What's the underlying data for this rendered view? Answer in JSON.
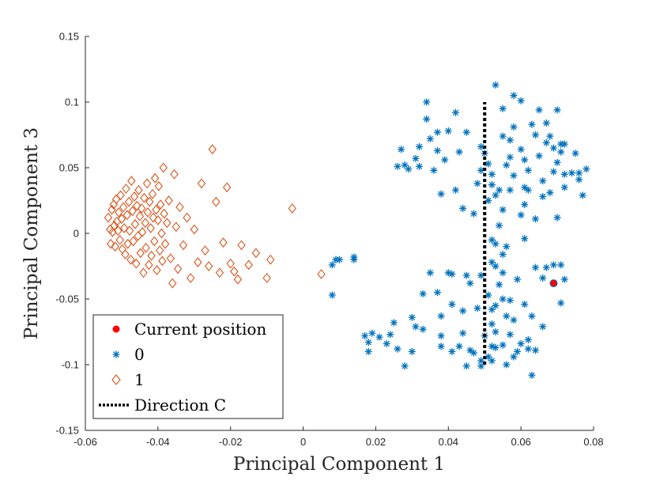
{
  "chart_data": {
    "type": "scatter",
    "xlabel": "Principal Component 1",
    "ylabel": "Principal Component 3",
    "xlim": [
      -0.06,
      0.08
    ],
    "ylim": [
      -0.15,
      0.15
    ],
    "xticks": [
      -0.06,
      -0.04,
      -0.02,
      0,
      0.02,
      0.04,
      0.06,
      0.08
    ],
    "xtick_labels": [
      "-0.06",
      "-0.04",
      "-0.02",
      "0",
      "0.02",
      "0.04",
      "0.06",
      "0.08"
    ],
    "yticks": [
      -0.15,
      -0.1,
      -0.05,
      0,
      0.05,
      0.1,
      0.15
    ],
    "ytick_labels": [
      "-0.15",
      "-0.1",
      "-0.05",
      "0",
      "0.05",
      "0.1",
      "0.15"
    ],
    "grid": false,
    "legend_position": "bottom-left",
    "legend": [
      "Current position",
      "0",
      "1",
      "Direction C"
    ],
    "series": [
      {
        "name": "0",
        "marker": "asterisk",
        "color": "#0072BD",
        "points": [
          [
            0.008,
            -0.024
          ],
          [
            0.009,
            -0.02
          ],
          [
            0.01,
            -0.02
          ],
          [
            0.008,
            -0.047
          ],
          [
            0.014,
            -0.018
          ],
          [
            0.014,
            -0.02
          ],
          [
            0.017,
            -0.078
          ],
          [
            0.018,
            -0.083
          ],
          [
            0.018,
            -0.09
          ],
          [
            0.019,
            -0.076
          ],
          [
            0.021,
            -0.079
          ],
          [
            0.023,
            -0.084
          ],
          [
            0.024,
            -0.077
          ],
          [
            0.025,
            -0.068
          ],
          [
            0.026,
            -0.088
          ],
          [
            0.026,
            0.051
          ],
          [
            0.027,
            0.064
          ],
          [
            0.028,
            0.052
          ],
          [
            0.028,
            -0.101
          ],
          [
            0.029,
            0.049
          ],
          [
            0.03,
            -0.064
          ],
          [
            0.03,
            -0.09
          ],
          [
            0.031,
            -0.071
          ],
          [
            0.031,
            0.057
          ],
          [
            0.032,
            0.066
          ],
          [
            0.032,
            0.051
          ],
          [
            0.033,
            -0.046
          ],
          [
            0.033,
            -0.073
          ],
          [
            0.034,
            0.087
          ],
          [
            0.034,
            0.1
          ],
          [
            0.035,
            0.072
          ],
          [
            0.035,
            -0.03
          ],
          [
            0.036,
            0.048
          ],
          [
            0.037,
            0.063
          ],
          [
            0.037,
            0.077
          ],
          [
            0.037,
            -0.045
          ],
          [
            0.038,
            0.03
          ],
          [
            0.038,
            -0.063
          ],
          [
            0.038,
            -0.078
          ],
          [
            0.038,
            -0.086
          ],
          [
            0.039,
            0.056
          ],
          [
            0.04,
            -0.03
          ],
          [
            0.04,
            0.078
          ],
          [
            0.041,
            -0.031
          ],
          [
            0.041,
            -0.09
          ],
          [
            0.041,
            -0.054
          ],
          [
            0.042,
            0.033
          ],
          [
            0.042,
            0.092
          ],
          [
            0.043,
            0.062
          ],
          [
            0.043,
            -0.086
          ],
          [
            0.044,
            -0.076
          ],
          [
            0.044,
            0.019
          ],
          [
            0.044,
            -0.059
          ],
          [
            0.045,
            0.077
          ],
          [
            0.045,
            -0.101
          ],
          [
            0.045,
            -0.032
          ],
          [
            0.046,
            -0.089
          ],
          [
            0.046,
            -0.038
          ],
          [
            0.047,
            -0.091
          ],
          [
            0.047,
            0.015
          ],
          [
            0.048,
            -0.057
          ],
          [
            0.048,
            0.038
          ],
          [
            0.049,
            -0.097
          ],
          [
            0.049,
            0.048
          ],
          [
            0.049,
            -0.032
          ],
          [
            0.049,
            -0.101
          ],
          [
            0.049,
            0.066
          ],
          [
            0.05,
            -0.078
          ],
          [
            0.05,
            0.061
          ],
          [
            0.051,
            -0.047
          ],
          [
            0.051,
            0.053
          ],
          [
            0.051,
            0.025
          ],
          [
            0.051,
            -0.094
          ],
          [
            0.052,
            -0.097
          ],
          [
            0.052,
            -0.086
          ],
          [
            0.052,
            0.045
          ],
          [
            0.052,
            0.037
          ],
          [
            0.052,
            -0.005
          ],
          [
            0.052,
            -0.022
          ],
          [
            0.052,
            -0.058
          ],
          [
            0.052,
            -0.069
          ],
          [
            0.053,
            0.113
          ],
          [
            0.053,
            -0.025
          ],
          [
            0.053,
            0.029
          ],
          [
            0.053,
            -0.008
          ],
          [
            0.053,
            -0.055
          ],
          [
            0.053,
            -0.075
          ],
          [
            0.053,
            -0.087
          ],
          [
            0.054,
            0.033
          ],
          [
            0.054,
            -0.039
          ],
          [
            0.054,
            0.006
          ],
          [
            0.055,
            0.018
          ],
          [
            0.055,
            -0.05
          ],
          [
            0.055,
            -0.085
          ],
          [
            0.055,
            0.095
          ],
          [
            0.055,
            0.074
          ],
          [
            0.055,
            -0.016
          ],
          [
            0.055,
            -0.03
          ],
          [
            0.056,
            -0.01
          ],
          [
            0.056,
            -0.063
          ],
          [
            0.056,
            -0.1
          ],
          [
            0.056,
            0.052
          ],
          [
            0.057,
            0.033
          ],
          [
            0.057,
            0.058
          ],
          [
            0.057,
            -0.077
          ],
          [
            0.057,
            0.071
          ],
          [
            0.057,
            -0.051
          ],
          [
            0.058,
            0.105
          ],
          [
            0.058,
            0.044
          ],
          [
            0.058,
            0.081
          ],
          [
            0.058,
            -0.066
          ],
          [
            0.058,
            -0.094
          ],
          [
            0.059,
            -0.035
          ],
          [
            0.059,
            -0.09
          ],
          [
            0.06,
            0.064
          ],
          [
            0.06,
            0.014
          ],
          [
            0.06,
            -0.084
          ],
          [
            0.06,
            0.101
          ],
          [
            0.061,
            0.056
          ],
          [
            0.061,
            -0.004
          ],
          [
            0.061,
            -0.054
          ],
          [
            0.061,
            0.022
          ],
          [
            0.061,
            0.035
          ],
          [
            0.062,
            0.033
          ],
          [
            0.062,
            -0.081
          ],
          [
            0.062,
            0.048
          ],
          [
            0.062,
            -0.088
          ],
          [
            0.063,
            0.083
          ],
          [
            0.063,
            -0.063
          ],
          [
            0.063,
            -0.108
          ],
          [
            0.064,
            0.075
          ],
          [
            0.064,
            -0.089
          ],
          [
            0.064,
            0.011
          ],
          [
            0.064,
            -0.026
          ],
          [
            0.065,
            0.059
          ],
          [
            0.065,
            0.094
          ],
          [
            0.066,
            0.04
          ],
          [
            0.066,
            0.028
          ],
          [
            0.066,
            -0.071
          ],
          [
            0.066,
            -0.034
          ],
          [
            0.067,
            -0.026
          ],
          [
            0.067,
            0.069
          ],
          [
            0.067,
            0.084
          ],
          [
            0.068,
            0.031
          ],
          [
            0.068,
            0.074
          ],
          [
            0.069,
            0.047
          ],
          [
            0.069,
            -0.024
          ],
          [
            0.069,
            0.065
          ],
          [
            0.069,
            -0.038
          ],
          [
            0.07,
            0.094
          ],
          [
            0.07,
            0.054
          ],
          [
            0.07,
            0.012
          ],
          [
            0.071,
            0.068
          ],
          [
            0.071,
            -0.053
          ],
          [
            0.071,
            0.062
          ],
          [
            0.071,
            -0.024
          ],
          [
            0.072,
            0.068
          ],
          [
            0.072,
            0.045
          ],
          [
            0.072,
            0.035
          ],
          [
            0.072,
            -0.035
          ],
          [
            0.074,
            0.046
          ],
          [
            0.075,
            0.061
          ],
          [
            0.076,
            0.041
          ],
          [
            0.076,
            0.046
          ],
          [
            0.077,
            0.029
          ],
          [
            0.078,
            0.049
          ]
        ]
      },
      {
        "name": "1",
        "marker": "diamond",
        "color": "#D95319",
        "points": [
          [
            -0.0537,
            0.012
          ],
          [
            -0.0532,
            0.003
          ],
          [
            -0.053,
            -0.008
          ],
          [
            -0.0527,
            0.018
          ],
          [
            -0.0525,
            0.001
          ],
          [
            -0.0522,
            0.022
          ],
          [
            -0.052,
            0.006
          ],
          [
            -0.0518,
            -0.01
          ],
          [
            -0.0515,
            0.026
          ],
          [
            -0.0513,
            0.009
          ],
          [
            -0.051,
            0.002
          ],
          [
            -0.0508,
            0.016
          ],
          [
            -0.0505,
            -0.005
          ],
          [
            -0.0503,
            0.029
          ],
          [
            -0.05,
            0.011
          ],
          [
            -0.0498,
            -0.012
          ],
          [
            -0.0495,
            0.02
          ],
          [
            -0.0493,
            0.004
          ],
          [
            -0.049,
            -0.016
          ],
          [
            -0.0488,
            0.034
          ],
          [
            -0.0485,
            0.014
          ],
          [
            -0.0483,
            -0.008
          ],
          [
            -0.048,
            0.024
          ],
          [
            -0.0478,
            0.002
          ],
          [
            -0.0475,
            -0.02
          ],
          [
            -0.0473,
            0.04
          ],
          [
            -0.047,
            0.017
          ],
          [
            -0.0468,
            -0.006
          ],
          [
            -0.0465,
            0.028
          ],
          [
            -0.0463,
            0.007
          ],
          [
            -0.046,
            -0.023
          ],
          [
            -0.0458,
            0.021
          ],
          [
            -0.0455,
            -0.002
          ],
          [
            -0.0453,
            0.033
          ],
          [
            -0.045,
            0.013
          ],
          [
            -0.0448,
            -0.015
          ],
          [
            -0.0445,
            0.019
          ],
          [
            -0.0443,
            0.001
          ],
          [
            -0.044,
            -0.03
          ],
          [
            -0.0438,
            0.027
          ],
          [
            -0.0435,
            0.008
          ],
          [
            -0.0433,
            -0.011
          ],
          [
            -0.043,
            0.038
          ],
          [
            -0.0428,
            0.016
          ],
          [
            -0.0425,
            -0.024
          ],
          [
            -0.0423,
            0.024
          ],
          [
            -0.042,
            0.004
          ],
          [
            -0.0418,
            -0.017
          ],
          [
            -0.0415,
            0.03
          ],
          [
            -0.0413,
            0.012
          ],
          [
            -0.041,
            -0.006
          ],
          [
            -0.0408,
            0.042
          ],
          [
            -0.0405,
            0.018
          ],
          [
            -0.0403,
            -0.028
          ],
          [
            -0.04,
            0.01
          ],
          [
            -0.0398,
            0.036
          ],
          [
            -0.0395,
            -0.013
          ],
          [
            -0.0393,
            0.022
          ],
          [
            -0.039,
            0.0
          ],
          [
            -0.0388,
            -0.021
          ],
          [
            -0.0385,
            0.05
          ],
          [
            -0.0383,
            0.015
          ],
          [
            -0.038,
            -0.008
          ],
          [
            -0.0375,
            0.008
          ],
          [
            -0.037,
            0.025
          ],
          [
            -0.0365,
            -0.019
          ],
          [
            -0.036,
            -0.038
          ],
          [
            -0.0355,
            0.045
          ],
          [
            -0.035,
            0.005
          ],
          [
            -0.0345,
            -0.027
          ],
          [
            -0.034,
            0.02
          ],
          [
            -0.033,
            -0.009
          ],
          [
            -0.032,
            0.012
          ],
          [
            -0.031,
            -0.034
          ],
          [
            -0.03,
            0.003
          ],
          [
            -0.029,
            -0.022
          ],
          [
            -0.028,
            0.038
          ],
          [
            -0.027,
            -0.013
          ],
          [
            -0.026,
            -0.025
          ],
          [
            -0.025,
            0.064
          ],
          [
            -0.024,
            0.024
          ],
          [
            -0.023,
            -0.03
          ],
          [
            -0.022,
            -0.007
          ],
          [
            -0.021,
            0.035
          ],
          [
            -0.02,
            -0.023
          ],
          [
            -0.019,
            -0.029
          ],
          [
            -0.018,
            -0.035
          ],
          [
            -0.017,
            -0.009
          ],
          [
            -0.015,
            -0.024
          ],
          [
            -0.013,
            -0.015
          ],
          [
            -0.01,
            -0.034
          ],
          [
            -0.009,
            -0.02
          ],
          [
            -0.003,
            0.019
          ],
          [
            0.005,
            -0.031
          ]
        ]
      },
      {
        "name": "Current position",
        "marker": "circle",
        "color": "#FF0000",
        "points": [
          [
            0.069,
            -0.038
          ]
        ]
      }
    ],
    "lines": [
      {
        "name": "Direction C",
        "style": "dotted",
        "color": "#000000",
        "x": [
          0.05,
          0.05
        ],
        "y": [
          -0.1,
          0.1
        ]
      }
    ]
  }
}
